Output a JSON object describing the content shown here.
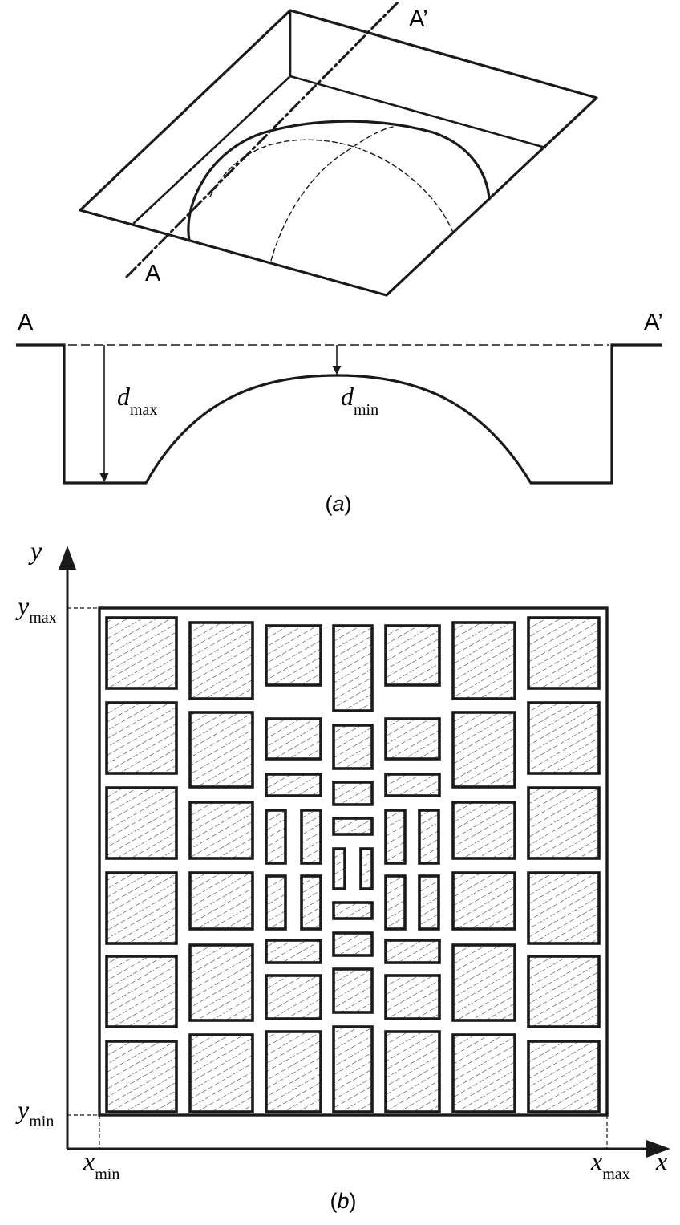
{
  "colors": {
    "stroke": "#1a1a1a",
    "hatch": "#333333",
    "background": "#ffffff"
  },
  "part_a": {
    "section_start": "A",
    "section_end": "A’",
    "dmax_var": "d",
    "dmax_sub": "max",
    "dmin_var": "d",
    "dmin_sub": "min",
    "caption_open": "(",
    "caption_letter": "a",
    "caption_close": ")"
  },
  "part_b": {
    "axis_x": "x",
    "axis_y": "y",
    "xmin_var": "x",
    "xmin_sub": "min",
    "xmax_var": "x",
    "xmax_sub": "max",
    "ymin_var": "y",
    "ymin_sub": "min",
    "ymax_var": "y",
    "ymax_sub": "max",
    "caption_open": "(",
    "caption_letter": "b",
    "caption_close": ")"
  }
}
